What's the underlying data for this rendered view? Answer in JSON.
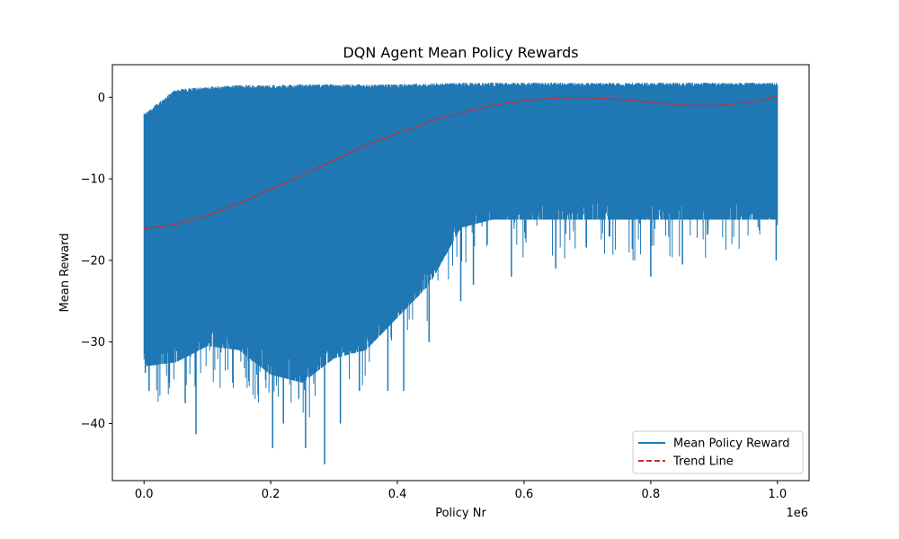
{
  "chart_data": {
    "type": "line",
    "title": "DQN Agent Mean Policy Rewards",
    "xlabel": "Policy Nr",
    "ylabel": "Mean Reward",
    "x_offset_label": "1e6",
    "xlim": [
      -0.05,
      1.05
    ],
    "ylim": [
      -47,
      4
    ],
    "x_ticks": [
      0.0,
      0.2,
      0.4,
      0.6,
      0.8,
      1.0
    ],
    "x_tick_labels": [
      "0.0",
      "0.2",
      "0.4",
      "0.6",
      "0.8",
      "1.0"
    ],
    "y_ticks": [
      -40,
      -30,
      -20,
      -10,
      0
    ],
    "y_tick_labels": [
      "−40",
      "−30",
      "−20",
      "−10",
      "0"
    ],
    "grid": false,
    "legend_position": "lower-right",
    "series": [
      {
        "name": "Mean Policy Reward",
        "style": "solid",
        "color": "#1f77b4",
        "envelope": {
          "x": [
            0.0,
            0.05,
            0.1,
            0.15,
            0.2,
            0.25,
            0.3,
            0.35,
            0.4,
            0.45,
            0.5,
            0.55,
            0.6,
            0.65,
            0.7,
            0.75,
            0.8,
            0.85,
            0.9,
            0.95,
            1.0
          ],
          "upper": [
            -2,
            1.0,
            1.3,
            1.5,
            1.5,
            1.6,
            1.6,
            1.6,
            1.6,
            1.7,
            1.8,
            1.8,
            1.8,
            1.8,
            1.8,
            1.8,
            1.8,
            1.8,
            1.8,
            1.8,
            1.8
          ],
          "lower_dense": [
            -33,
            -32.5,
            -30.5,
            -31,
            -34,
            -35,
            -32,
            -31,
            -27,
            -23,
            -16,
            -15,
            -15,
            -15,
            -15,
            -15,
            -15,
            -15,
            -15,
            -15,
            -15
          ]
        },
        "notable_minima": [
          {
            "x": 0.002,
            "y": -33.8
          },
          {
            "x": 0.008,
            "y": -36
          },
          {
            "x": 0.04,
            "y": -35
          },
          {
            "x": 0.065,
            "y": -37.5
          },
          {
            "x": 0.082,
            "y": -41.3
          },
          {
            "x": 0.14,
            "y": -35
          },
          {
            "x": 0.18,
            "y": -36.5
          },
          {
            "x": 0.203,
            "y": -43
          },
          {
            "x": 0.22,
            "y": -40
          },
          {
            "x": 0.255,
            "y": -43
          },
          {
            "x": 0.285,
            "y": -45
          },
          {
            "x": 0.31,
            "y": -40
          },
          {
            "x": 0.34,
            "y": -36
          },
          {
            "x": 0.385,
            "y": -36
          },
          {
            "x": 0.41,
            "y": -36
          },
          {
            "x": 0.45,
            "y": -30
          },
          {
            "x": 0.5,
            "y": -25
          },
          {
            "x": 0.52,
            "y": -23
          },
          {
            "x": 0.58,
            "y": -22
          },
          {
            "x": 0.65,
            "y": -21
          },
          {
            "x": 0.8,
            "y": -22
          },
          {
            "x": 0.85,
            "y": -20.5
          },
          {
            "x": 0.998,
            "y": -20
          }
        ]
      },
      {
        "name": "Trend Line",
        "style": "dashed",
        "color": "#d62728",
        "x": [
          0.0,
          0.05,
          0.1,
          0.15,
          0.2,
          0.25,
          0.3,
          0.35,
          0.4,
          0.45,
          0.5,
          0.55,
          0.6,
          0.65,
          0.7,
          0.75,
          0.8,
          0.85,
          0.9,
          0.95,
          1.0
        ],
        "y": [
          -16.1,
          -15.6,
          -14.5,
          -13.0,
          -11.3,
          -9.5,
          -7.7,
          -5.9,
          -4.4,
          -3.0,
          -1.9,
          -1.0,
          -0.4,
          -0.1,
          -0.05,
          -0.25,
          -0.6,
          -0.95,
          -1.0,
          -0.7,
          0.1
        ]
      }
    ]
  }
}
